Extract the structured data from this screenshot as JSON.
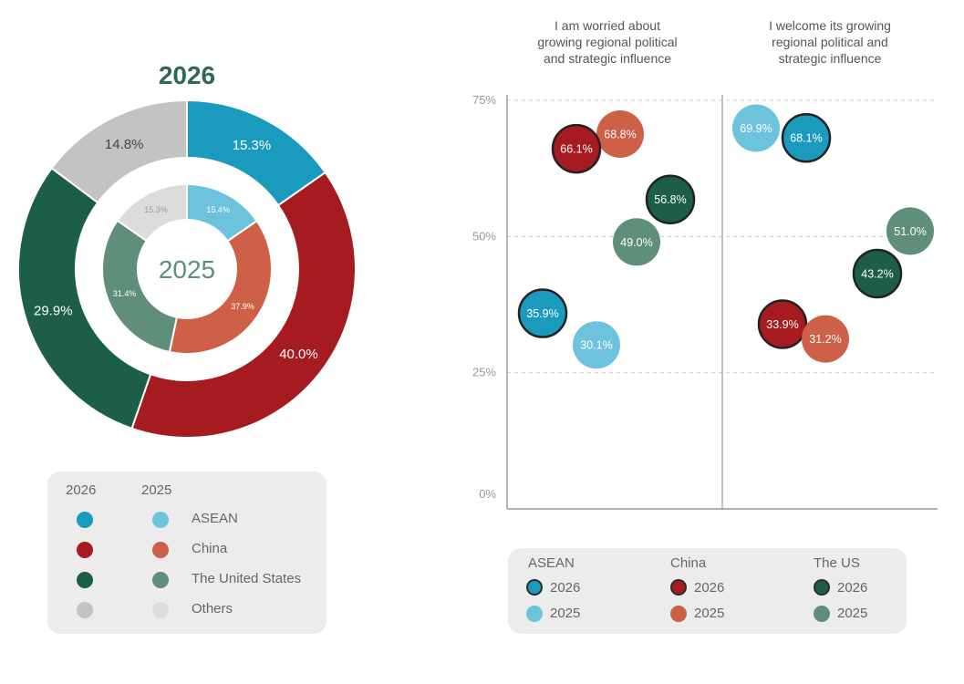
{
  "colors": {
    "asean_2026": "#1a9bbd",
    "asean_2025": "#6ec3dc",
    "china_2026": "#a51b1f",
    "china_2025": "#cf6048",
    "us_2026": "#1c5e4a",
    "us_2025": "#5f8e7a",
    "others_2026": "#c3c3c3",
    "others_2025": "#dcdcdc",
    "title_green": "#2d6a4f"
  },
  "chart_data": [
    {
      "type": "pie",
      "variant": "nested-donut",
      "outer_title": "2026",
      "inner_title": "2025",
      "rings": [
        {
          "name": "2026",
          "slices": [
            {
              "category": "ASEAN",
              "value": 15.3,
              "label": "15.3%"
            },
            {
              "category": "China",
              "value": 40.0,
              "label": "40.0%"
            },
            {
              "category": "The United States",
              "value": 29.9,
              "label": "29.9%"
            },
            {
              "category": "Others",
              "value": 14.8,
              "label": "14.8%"
            }
          ]
        },
        {
          "name": "2025",
          "slices": [
            {
              "category": "ASEAN",
              "value": 15.4,
              "label": "15.4%"
            },
            {
              "category": "China",
              "value": 37.9,
              "label": "37.9%"
            },
            {
              "category": "The United States",
              "value": 31.4,
              "label": "31.4%"
            },
            {
              "category": "Others",
              "value": 15.3,
              "label": "15.3%"
            }
          ]
        }
      ],
      "legend": {
        "headers": [
          "2026",
          "2025"
        ],
        "entries": [
          "ASEAN",
          "China",
          "The United States",
          "Others"
        ]
      }
    },
    {
      "type": "scatter",
      "panels": [
        {
          "title": "I am worried about growing regional political and strategic influence"
        },
        {
          "title": "I welcome its growing regional political and strategic influence"
        }
      ],
      "ylim": [
        0,
        75
      ],
      "yticks": [
        "0%",
        "25%",
        "50%",
        "75%"
      ],
      "grid": true,
      "points": [
        {
          "panel": 0,
          "group": "China",
          "year": "2025",
          "value": 68.8,
          "label": "68.8%"
        },
        {
          "panel": 0,
          "group": "China",
          "year": "2026",
          "value": 66.1,
          "label": "66.1%"
        },
        {
          "panel": 0,
          "group": "The US",
          "year": "2026",
          "value": 56.8,
          "label": "56.8%"
        },
        {
          "panel": 0,
          "group": "The US",
          "year": "2025",
          "value": 49.0,
          "label": "49.0%"
        },
        {
          "panel": 0,
          "group": "ASEAN",
          "year": "2026",
          "value": 35.9,
          "label": "35.9%"
        },
        {
          "panel": 0,
          "group": "ASEAN",
          "year": "2025",
          "value": 30.1,
          "label": "30.1%"
        },
        {
          "panel": 1,
          "group": "ASEAN",
          "year": "2025",
          "value": 69.9,
          "label": "69.9%"
        },
        {
          "panel": 1,
          "group": "ASEAN",
          "year": "2026",
          "value": 68.1,
          "label": "68.1%"
        },
        {
          "panel": 1,
          "group": "The US",
          "year": "2025",
          "value": 51.0,
          "label": "51.0%"
        },
        {
          "panel": 1,
          "group": "The US",
          "year": "2026",
          "value": 43.2,
          "label": "43.2%"
        },
        {
          "panel": 1,
          "group": "China",
          "year": "2026",
          "value": 33.9,
          "label": "33.9%"
        },
        {
          "panel": 1,
          "group": "China",
          "year": "2025",
          "value": 31.2,
          "label": "31.2%"
        }
      ],
      "legend": {
        "groups": [
          "ASEAN",
          "China",
          "The US"
        ],
        "years": [
          "2026",
          "2025"
        ]
      }
    }
  ]
}
